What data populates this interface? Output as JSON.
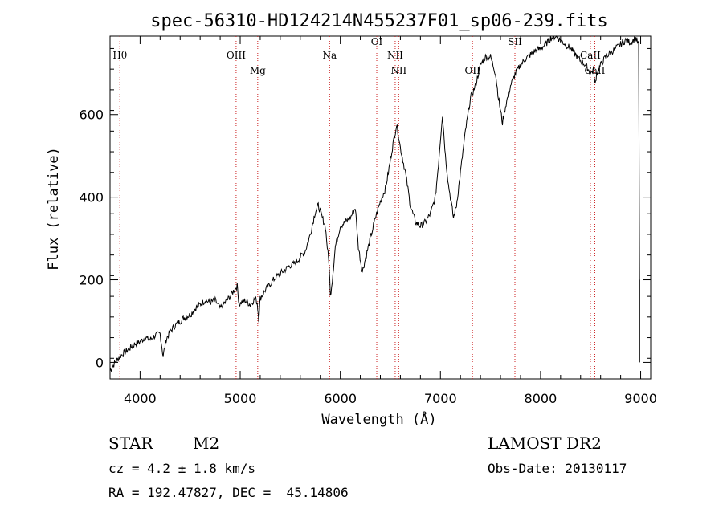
{
  "chart_data": {
    "type": "line",
    "title": "spec-56310-HD124214N455237F01_sp06-239.fits",
    "xlabel": "Wavelength (Å)",
    "ylabel": "Flux (relative)",
    "xlim": [
      3700,
      9100
    ],
    "ylim": [
      -40,
      790
    ],
    "xticks": [
      4000,
      5000,
      6000,
      7000,
      8000,
      9000
    ],
    "yticks": [
      0,
      200,
      400,
      600
    ],
    "grid": false,
    "series": [
      {
        "color": "#000000",
        "x": [
          3700,
          3750,
          3800,
          3850,
          3900,
          3950,
          4000,
          4050,
          4100,
          4150,
          4200,
          4230,
          4260,
          4300,
          4350,
          4400,
          4450,
          4500,
          4550,
          4600,
          4650,
          4700,
          4750,
          4800,
          4850,
          4900,
          4950,
          4970,
          4990,
          5010,
          5050,
          5100,
          5150,
          5170,
          5185,
          5200,
          5250,
          5300,
          5350,
          5400,
          5450,
          5500,
          5550,
          5600,
          5650,
          5700,
          5750,
          5780,
          5820,
          5850,
          5870,
          5890,
          5900,
          5920,
          5950,
          6000,
          6050,
          6100,
          6130,
          6150,
          6180,
          6220,
          6260,
          6300,
          6350,
          6400,
          6450,
          6480,
          6520,
          6550,
          6562,
          6575,
          6600,
          6650,
          6700,
          6750,
          6800,
          6850,
          6900,
          6950,
          6980,
          7000,
          7020,
          7050,
          7080,
          7100,
          7130,
          7160,
          7200,
          7250,
          7300,
          7350,
          7400,
          7450,
          7500,
          7550,
          7580,
          7620,
          7650,
          7680,
          7700,
          7750,
          7800,
          7850,
          7900,
          7950,
          8000,
          8050,
          8100,
          8150,
          8200,
          8250,
          8300,
          8350,
          8400,
          8450,
          8500,
          8530,
          8545,
          8560,
          8600,
          8650,
          8700,
          8750,
          8800,
          8850,
          8900,
          8950,
          8980,
          8990
        ],
        "y": [
          -20,
          0,
          15,
          25,
          35,
          45,
          50,
          60,
          55,
          65,
          70,
          15,
          55,
          75,
          90,
          100,
          110,
          115,
          130,
          140,
          150,
          145,
          150,
          130,
          145,
          160,
          180,
          185,
          140,
          145,
          150,
          140,
          155,
          145,
          105,
          155,
          175,
          190,
          205,
          215,
          225,
          235,
          240,
          255,
          270,
          310,
          365,
          380,
          350,
          330,
          280,
          230,
          160,
          200,
          280,
          330,
          340,
          350,
          365,
          375,
          280,
          220,
          260,
          300,
          350,
          390,
          420,
          460,
          520,
          560,
          575,
          560,
          520,
          460,
          380,
          340,
          330,
          340,
          360,
          400,
          480,
          540,
          600,
          500,
          430,
          400,
          350,
          380,
          460,
          560,
          640,
          670,
          720,
          740,
          740,
          700,
          640,
          580,
          620,
          650,
          670,
          700,
          720,
          735,
          745,
          755,
          760,
          770,
          785,
          790,
          780,
          770,
          760,
          745,
          730,
          720,
          700,
          710,
          670,
          700,
          720,
          740,
          750,
          760,
          770,
          780,
          775,
          785,
          770,
          120
        ],
        "_note": ""
      }
    ],
    "lines": [
      {
        "label": "Hθ",
        "x": 3798
      },
      {
        "label": "OIII",
        "x": 4959
      },
      {
        "label": "Mg",
        "x": 5175
      },
      {
        "label": "Na",
        "x": 5893
      },
      {
        "label": "OI",
        "x": 6364
      },
      {
        "label": "NII",
        "x": 6548
      },
      {
        "label": "NII",
        "x": 6583
      },
      {
        "label": "OII",
        "x": 7320
      },
      {
        "label": "SII",
        "x": 7744
      },
      {
        "label": "CaII",
        "x": 8498
      },
      {
        "label": "CaII",
        "x": 8542
      }
    ]
  },
  "info": {
    "object_class": "STAR",
    "subclass": "M2",
    "survey": "LAMOST DR2",
    "cz": "cz = 4.2 ± 1.8 km/s",
    "obs_date": "Obs-Date: 20130117",
    "coords": "RA = 192.47827, DEC =  45.14806"
  }
}
